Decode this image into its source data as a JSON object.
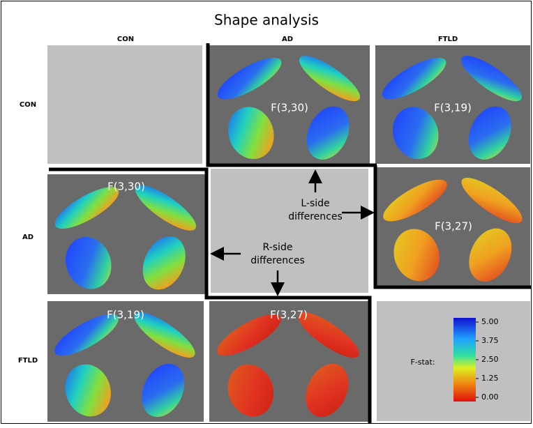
{
  "title": "Shape analysis",
  "columns": [
    "CON",
    "AD",
    "FTLD"
  ],
  "rows": [
    "CON",
    "AD",
    "FTLD"
  ],
  "cells": {
    "con_ad": "F(3,30)",
    "con_ftld": "F(3,19)",
    "ad_con": "F(3,30)",
    "ad_ftld": "F(3,27)",
    "ftld_con": "F(3,19)",
    "ftld_ad": "F(3,27)"
  },
  "annotations": {
    "l_side": [
      "L-side",
      "differences"
    ],
    "r_side": [
      "R-side",
      "differences"
    ]
  },
  "colorbar": {
    "label": "F-stat:",
    "ticks": [
      {
        "value": 5,
        "label": "5.00"
      },
      {
        "value": 3.75,
        "label": "3.75"
      },
      {
        "value": 2.5,
        "label": "2.50"
      },
      {
        "value": 1.25,
        "label": "1.25"
      },
      {
        "value": 0,
        "label": "0.00"
      }
    ]
  }
}
